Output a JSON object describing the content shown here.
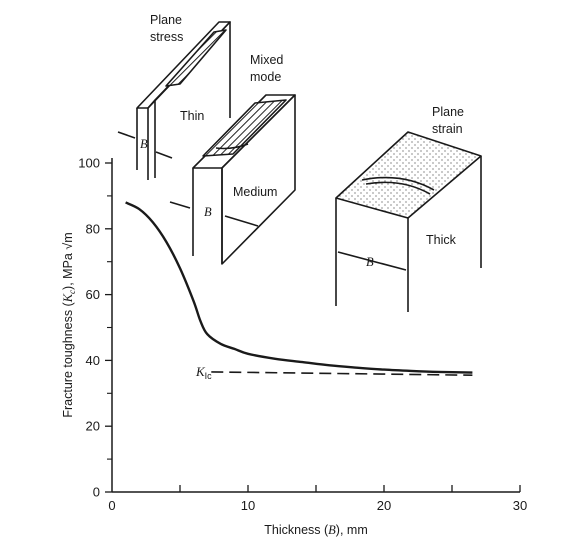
{
  "chart_data": {
    "type": "line",
    "xlabel_parts": [
      "Thickness (",
      "B",
      "), mm"
    ],
    "ylabel_parts": [
      "Fracture toughness (",
      "K",
      "c",
      "), MPa √m"
    ],
    "xlim": [
      0,
      30
    ],
    "ylim": [
      0,
      100
    ],
    "xticks": [
      "0",
      "10",
      "20",
      "30"
    ],
    "yticks": [
      "0",
      "20",
      "40",
      "60",
      "80",
      "100"
    ],
    "grid": false,
    "series": [
      {
        "style": "solid",
        "x": [
          1,
          2,
          3,
          4,
          5,
          6,
          6.5,
          7,
          8,
          9,
          10,
          12,
          14,
          16,
          18,
          20,
          22,
          24,
          26.5
        ],
        "y": [
          88,
          86,
          82,
          76,
          68,
          58,
          52,
          48,
          45,
          43.5,
          42,
          40.5,
          39.5,
          38.5,
          37.8,
          37.2,
          36.8,
          36.5,
          36.3
        ]
      },
      {
        "style": "dashed",
        "x": [
          7.3,
          26.5
        ],
        "y": [
          36.5,
          35.5
        ]
      }
    ],
    "annotations": {
      "kic": {
        "main": "K",
        "sub": "Ic"
      },
      "thin": "Thin",
      "medium": "Medium",
      "thick": "Thick",
      "plane_stress": [
        "Plane",
        "stress"
      ],
      "mixed_mode": [
        "Mixed",
        "mode"
      ],
      "plane_strain": [
        "Plane",
        "strain"
      ],
      "b_thin": "B",
      "b_medium": "B",
      "b_thick": "B"
    }
  }
}
